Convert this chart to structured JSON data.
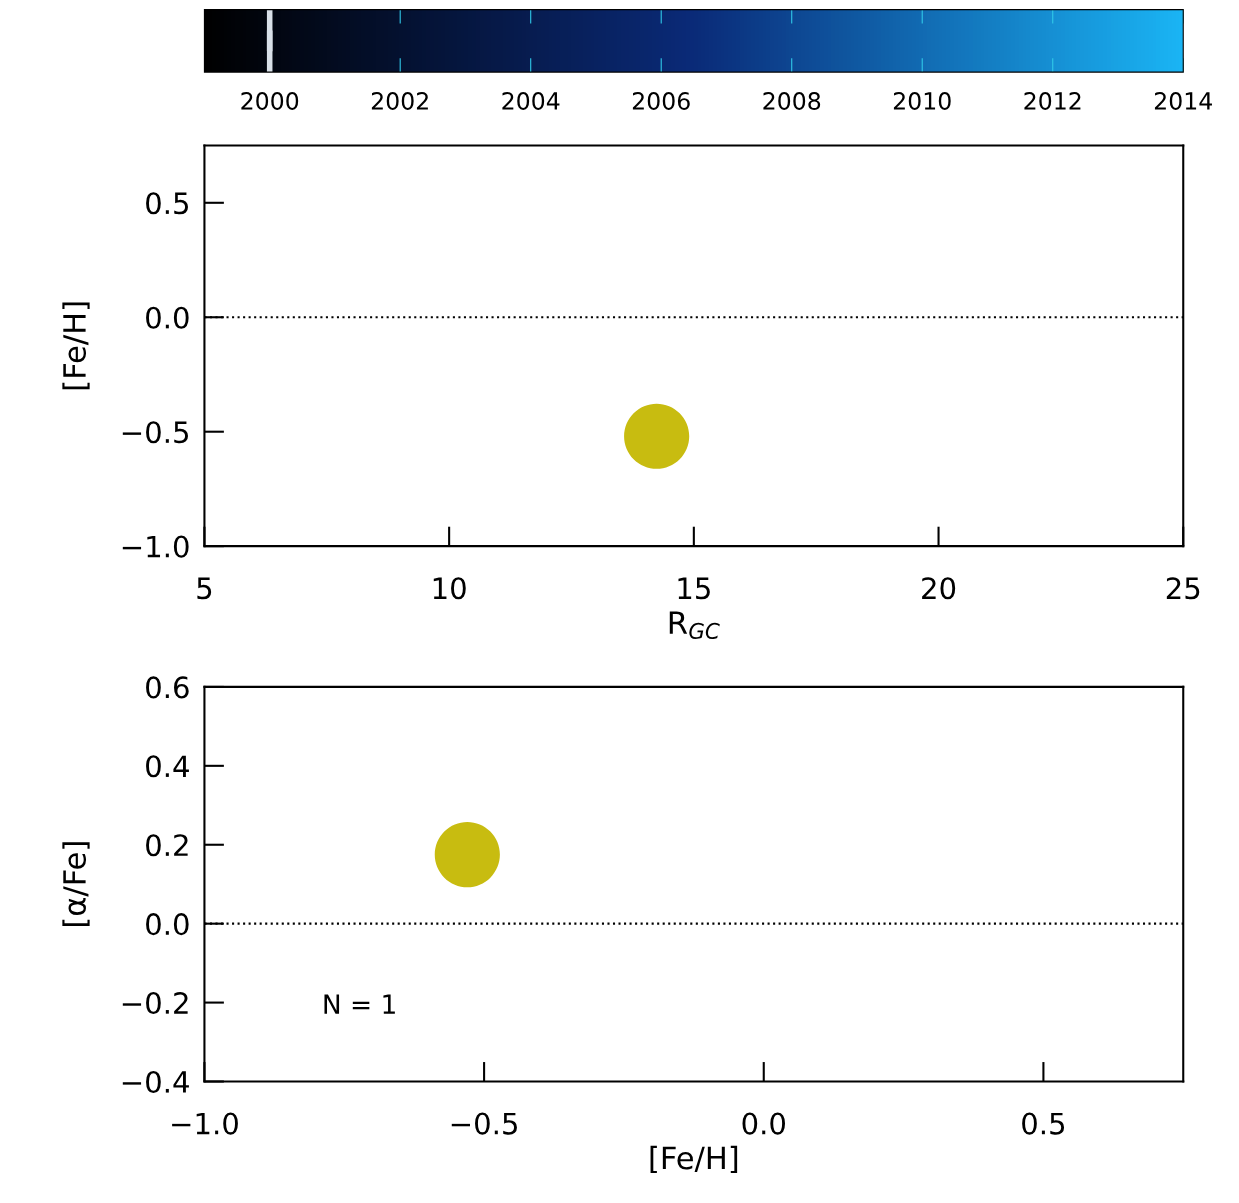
{
  "chart_data": [
    {
      "type": "scatter",
      "x": [
        14.24
      ],
      "values": [
        -0.52
      ],
      "color": "#c8bc10",
      "marker": "circle",
      "xlim": [
        5,
        25
      ],
      "ylim": [
        -1.0,
        0.75
      ],
      "xticks": [
        5,
        10,
        15,
        20,
        25
      ],
      "yticks": [
        {
          "value": -1.0,
          "label": "−1.0"
        },
        {
          "value": -0.5,
          "label": "−0.5"
        },
        {
          "value": 0.0,
          "label": "0.0"
        },
        {
          "value": 0.5,
          "label": "0.5"
        }
      ],
      "xlabel": "R$_{GC}$",
      "ylabel": "[Fe/H]",
      "clim": [
        1999,
        2014
      ],
      "cticks": [
        2000,
        2002,
        2004,
        2006,
        2008,
        2010,
        2012,
        2014
      ],
      "ref_lines": [
        {
          "axis": "y",
          "value": 0.0,
          "line_style": "dotted",
          "color": "#000000"
        }
      ]
    },
    {
      "type": "scatter",
      "x": [
        -0.53
      ],
      "values": [
        0.175
      ],
      "color": "#c8bc10",
      "marker": "circle",
      "xlim": [
        -1.0,
        0.75
      ],
      "ylim": [
        -0.4,
        0.6
      ],
      "xticks": [
        {
          "value": -1.0,
          "label": "−1.0"
        },
        {
          "value": -0.5,
          "label": "−0.5"
        },
        {
          "value": 0.0,
          "label": "0.0"
        },
        {
          "value": 0.5,
          "label": "0.5"
        }
      ],
      "yticks": [
        {
          "value": -0.4,
          "label": "−0.4"
        },
        {
          "value": -0.2,
          "label": "−0.2"
        },
        {
          "value": 0.0,
          "label": "0.0"
        },
        {
          "value": 0.2,
          "label": "0.2"
        },
        {
          "value": 0.4,
          "label": "0.4"
        },
        {
          "value": 0.6,
          "label": "0.6"
        }
      ],
      "xlabel": "[Fe/H]",
      "ylabel": "[α/Fe]",
      "ref_lines": [
        {
          "axis": "y",
          "value": 0.0,
          "line_style": "dotted",
          "color": "#000000"
        }
      ],
      "annotations": [
        "N = 1"
      ]
    }
  ]
}
